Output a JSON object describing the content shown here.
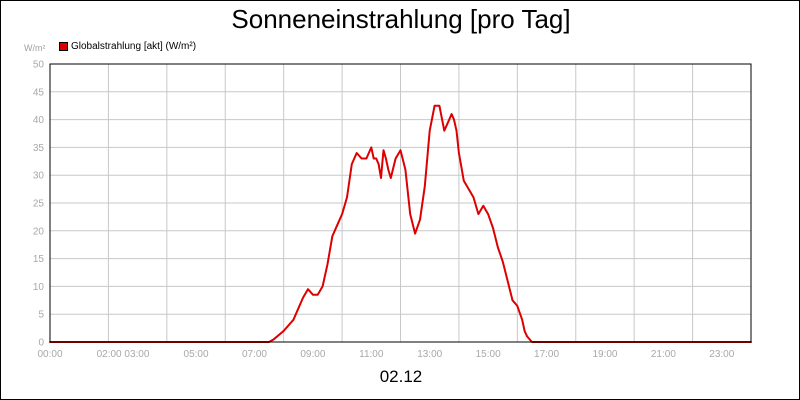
{
  "colors": {
    "series": "#dd0000",
    "grid": "#c8c8c8",
    "tick_text": "#a8a8a8"
  },
  "chart_data": {
    "type": "line",
    "title": "Sonneneinstrahlung [pro Tag]",
    "ylabel": "W/m²",
    "xlabel": "02.12",
    "legend_position": "top-left",
    "grid": true,
    "ylim": [
      0,
      50
    ],
    "xlim": [
      "00:00",
      "24:00"
    ],
    "x_tick_labels": [
      "00:00",
      "02:00 03:00",
      "05:00",
      "07:00",
      "09:00",
      "11:00",
      "13:00",
      "15:00",
      "17:00",
      "19:00",
      "21:00",
      "23:00"
    ],
    "y_tick_labels": [
      "0",
      "5",
      "10",
      "15",
      "20",
      "25",
      "30",
      "35",
      "40",
      "45",
      "50"
    ],
    "series": [
      {
        "name": "Globalstrahlung [akt] (W/m²)",
        "x": [
          "00:00",
          "07:30",
          "07:40",
          "08:00",
          "08:20",
          "08:40",
          "08:50",
          "09:00",
          "09:10",
          "09:20",
          "09:30",
          "09:40",
          "09:50",
          "10:00",
          "10:10",
          "10:20",
          "10:30",
          "10:40",
          "10:50",
          "11:00",
          "11:05",
          "11:10",
          "11:15",
          "11:20",
          "11:25",
          "11:30",
          "11:35",
          "11:40",
          "11:50",
          "12:00",
          "12:10",
          "12:20",
          "12:30",
          "12:40",
          "12:50",
          "13:00",
          "13:10",
          "13:20",
          "13:30",
          "13:40",
          "13:45",
          "13:50",
          "13:55",
          "14:00",
          "14:10",
          "14:20",
          "14:30",
          "14:40",
          "14:50",
          "15:00",
          "15:10",
          "15:20",
          "15:30",
          "15:40",
          "15:50",
          "16:00",
          "16:10",
          "16:15",
          "16:20",
          "16:30",
          "16:40",
          "16:50",
          "17:00",
          "24:00"
        ],
        "values": [
          0,
          0,
          0.5,
          2,
          4,
          8,
          9.5,
          8.5,
          8.5,
          10,
          14,
          19,
          21,
          23,
          26,
          32,
          34,
          33,
          33,
          35,
          33,
          33,
          32,
          29.5,
          34.5,
          33,
          31,
          29.5,
          33,
          34.5,
          31,
          23,
          19.5,
          22,
          28,
          38,
          42.5,
          42.5,
          38,
          40,
          41,
          40,
          38,
          34,
          29,
          27.5,
          26,
          23,
          24.5,
          23,
          20.5,
          17,
          14.5,
          11,
          7.5,
          6.5,
          4,
          2,
          1,
          0,
          0,
          0,
          0,
          0
        ]
      }
    ]
  }
}
